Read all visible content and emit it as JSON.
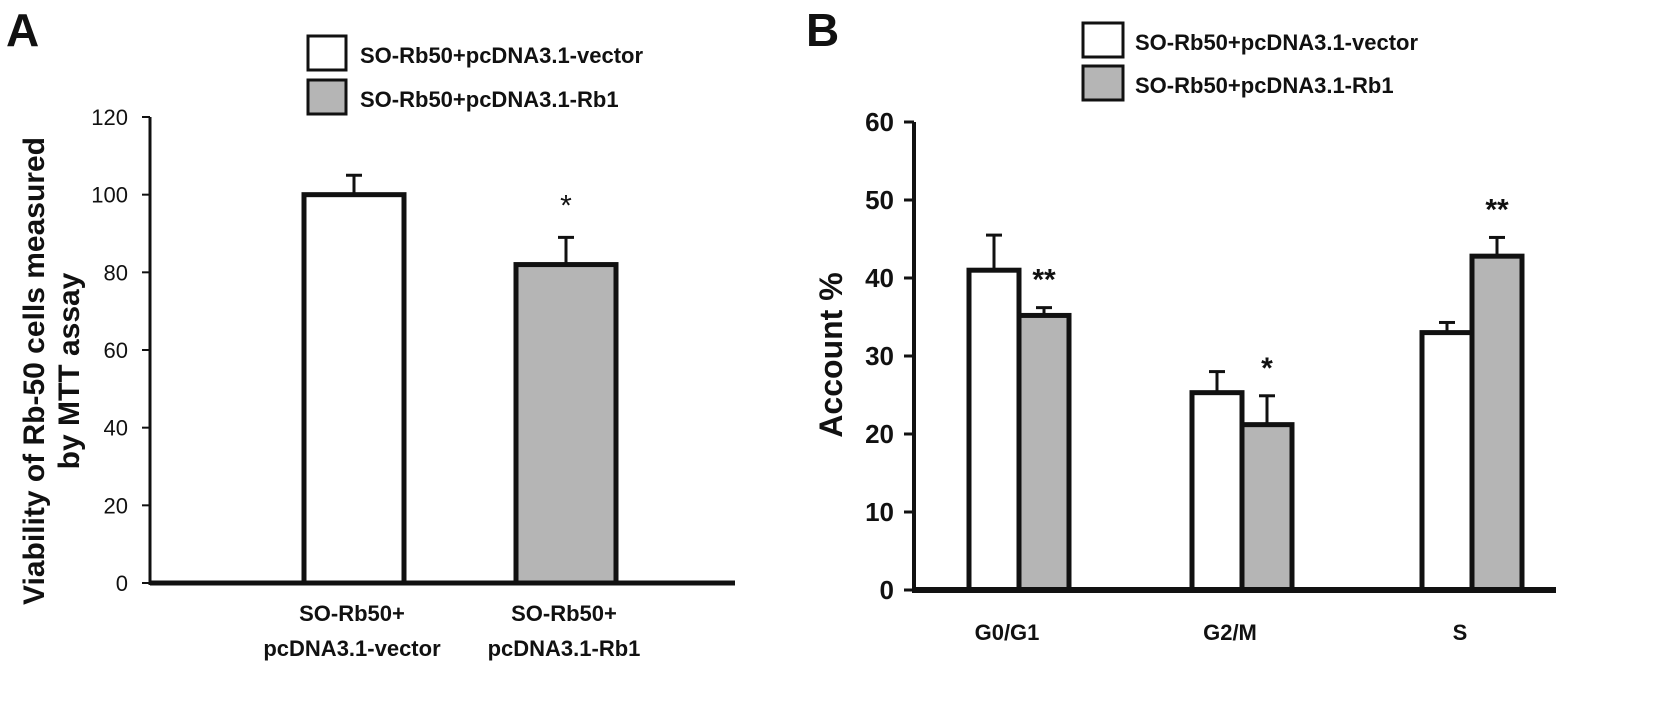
{
  "chart_data": [
    {
      "type": "bar",
      "panel": "A",
      "ylabel_line1": "Viability of Rb-50 cells  measured",
      "ylabel_line2": "by MTT assay",
      "ylim": [
        0,
        120
      ],
      "yticks": [
        0,
        20,
        40,
        60,
        80,
        100,
        120
      ],
      "categories": [
        {
          "line1": "SO-Rb50+",
          "line2": "pcDNA3.1-vector"
        },
        {
          "line1": "SO-Rb50+",
          "line2": "pcDNA3.1-Rb1"
        }
      ],
      "values": [
        100,
        82
      ],
      "errors": [
        5,
        7
      ],
      "fills": [
        "#ffffff",
        "#b5b5b5"
      ],
      "significance": [
        "",
        "*"
      ],
      "legend": [
        {
          "label": "SO-Rb50+pcDNA3.1-vector",
          "color": "#ffffff"
        },
        {
          "label": "SO-Rb50+pcDNA3.1-Rb1",
          "color": "#b5b5b5"
        }
      ]
    },
    {
      "type": "bar",
      "panel": "B",
      "ylabel": "Account %",
      "ylim": [
        0,
        60
      ],
      "yticks": [
        0,
        10,
        20,
        30,
        40,
        50,
        60
      ],
      "categories": [
        "G0/G1",
        "G2/M",
        "S"
      ],
      "series": [
        {
          "name": "SO-Rb50+pcDNA3.1-vector",
          "color": "#ffffff",
          "values": [
            41,
            25.3,
            33
          ],
          "errors": [
            4.5,
            2.7,
            1.3
          ],
          "significance": [
            "",
            "",
            ""
          ]
        },
        {
          "name": "SO-Rb50+pcDNA3.1-Rb1",
          "color": "#b5b5b5",
          "values": [
            35.2,
            21.2,
            42.8
          ],
          "errors": [
            1,
            3.7,
            2.4
          ],
          "significance": [
            "**",
            "*",
            "**"
          ]
        }
      ]
    }
  ]
}
